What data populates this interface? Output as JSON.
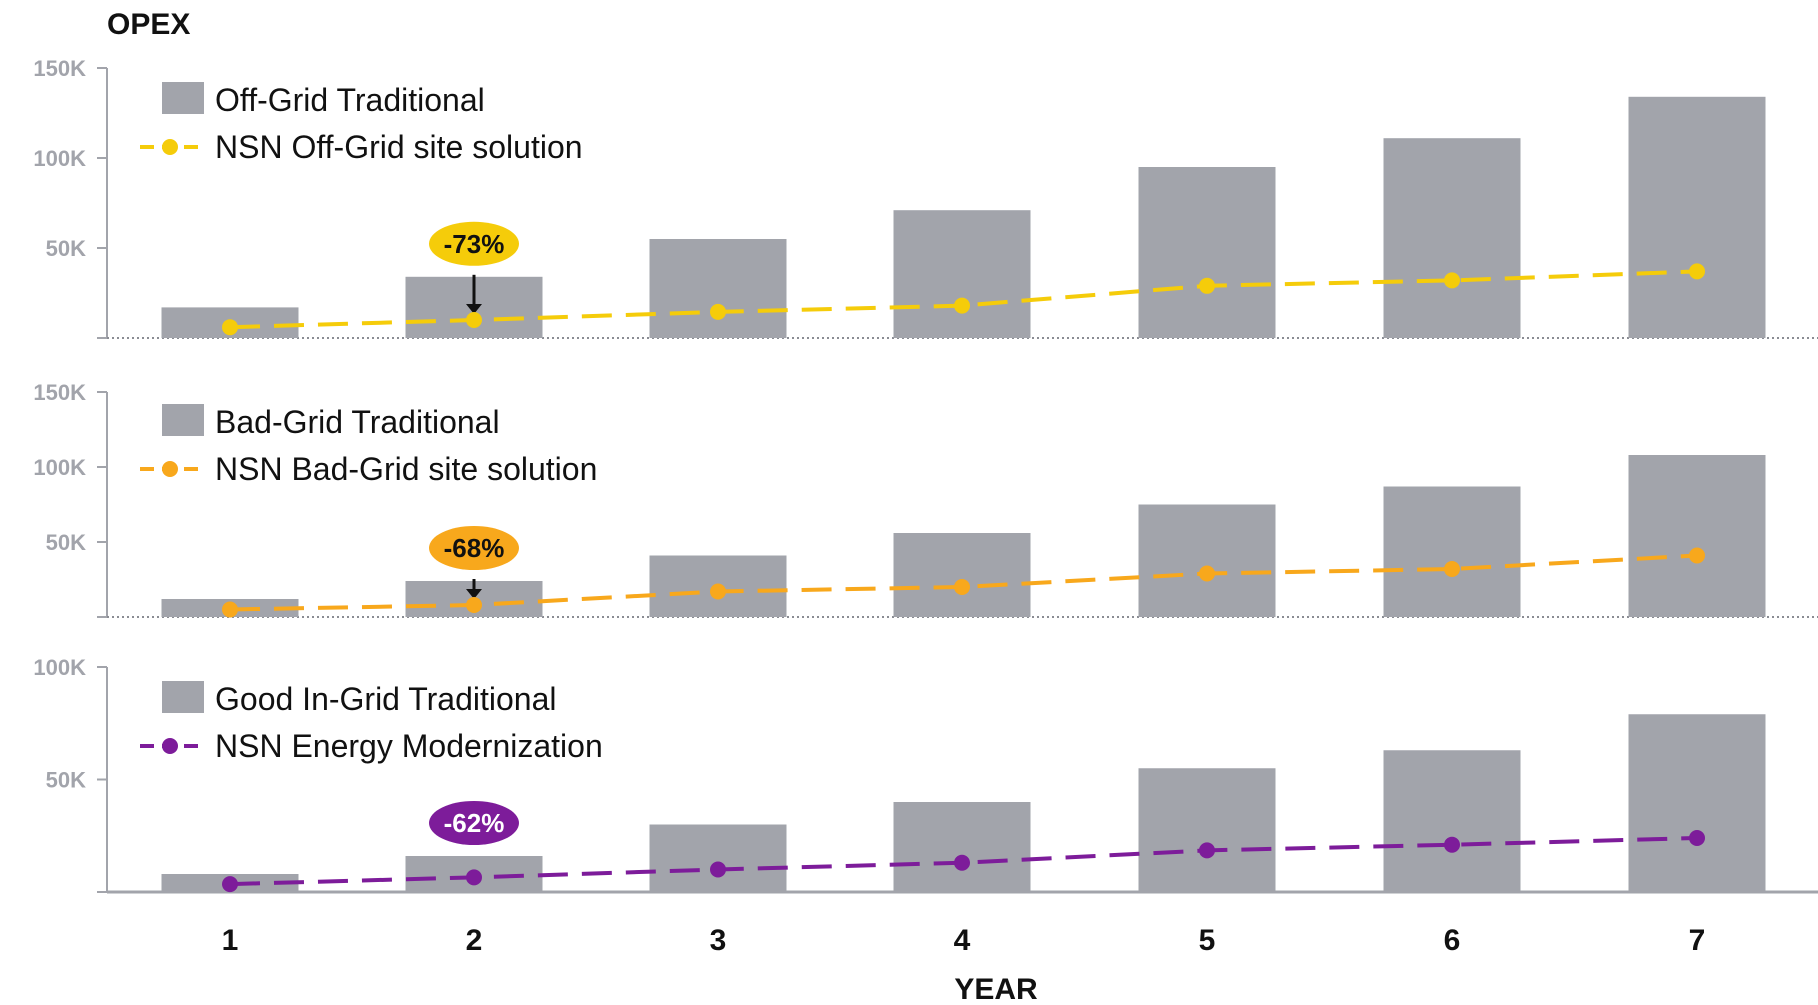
{
  "chart_data": {
    "type": "bar",
    "ylabel": "OPEX",
    "xlabel": "YEAR",
    "categories": [
      "1",
      "2",
      "3",
      "4",
      "5",
      "6",
      "7"
    ],
    "bar_color": "#a2a4ab",
    "panels": [
      {
        "ylim": [
          0,
          150
        ],
        "ytick_values": [
          50,
          100,
          150
        ],
        "ytick_labels": [
          "50K",
          "100K",
          "150K"
        ],
        "series": [
          {
            "name": "Off-Grid Traditional",
            "kind": "bar",
            "color": "#a2a4ab",
            "values": [
              17,
              34,
              55,
              71,
              95,
              111,
              134
            ]
          },
          {
            "name": "NSN Off-Grid site solution",
            "kind": "line",
            "color": "#f5cc0a",
            "values": [
              6,
              10,
              14.5,
              18,
              29,
              32,
              37
            ]
          }
        ],
        "callout": {
          "text": "-73%",
          "category_index": 1,
          "color": "#f5cc0a",
          "text_color": "#111111",
          "arrow": true
        }
      },
      {
        "ylim": [
          0,
          150
        ],
        "ytick_values": [
          50,
          100,
          150
        ],
        "ytick_labels": [
          "50K",
          "100K",
          "150K"
        ],
        "series": [
          {
            "name": "Bad-Grid Traditional",
            "kind": "bar",
            "color": "#a2a4ab",
            "values": [
              12,
              24,
              41,
              56,
              75,
              87,
              108
            ]
          },
          {
            "name": "NSN Bad-Grid site solution",
            "kind": "line",
            "color": "#f8a81c",
            "values": [
              5,
              8,
              17,
              20,
              29,
              32,
              41
            ]
          }
        ],
        "callout": {
          "text": "-68%",
          "category_index": 1,
          "color": "#f8a81c",
          "text_color": "#111111",
          "arrow": true
        }
      },
      {
        "ylim": [
          0,
          100
        ],
        "ytick_values": [
          50,
          100
        ],
        "ytick_labels": [
          "50K",
          "100K"
        ],
        "series": [
          {
            "name": "Good In-Grid Traditional",
            "kind": "bar",
            "color": "#a2a4ab",
            "values": [
              8,
              16,
              30,
              40,
              55,
              63,
              79
            ]
          },
          {
            "name": "NSN Energy Modernization",
            "kind": "line",
            "color": "#7d1c9a",
            "values": [
              3.5,
              6.5,
              10,
              13,
              18.5,
              21,
              24
            ]
          }
        ],
        "callout": {
          "text": "-62%",
          "category_index": 1,
          "color": "#7d1c9a",
          "text_color": "#ffffff",
          "arrow": false
        }
      }
    ]
  }
}
